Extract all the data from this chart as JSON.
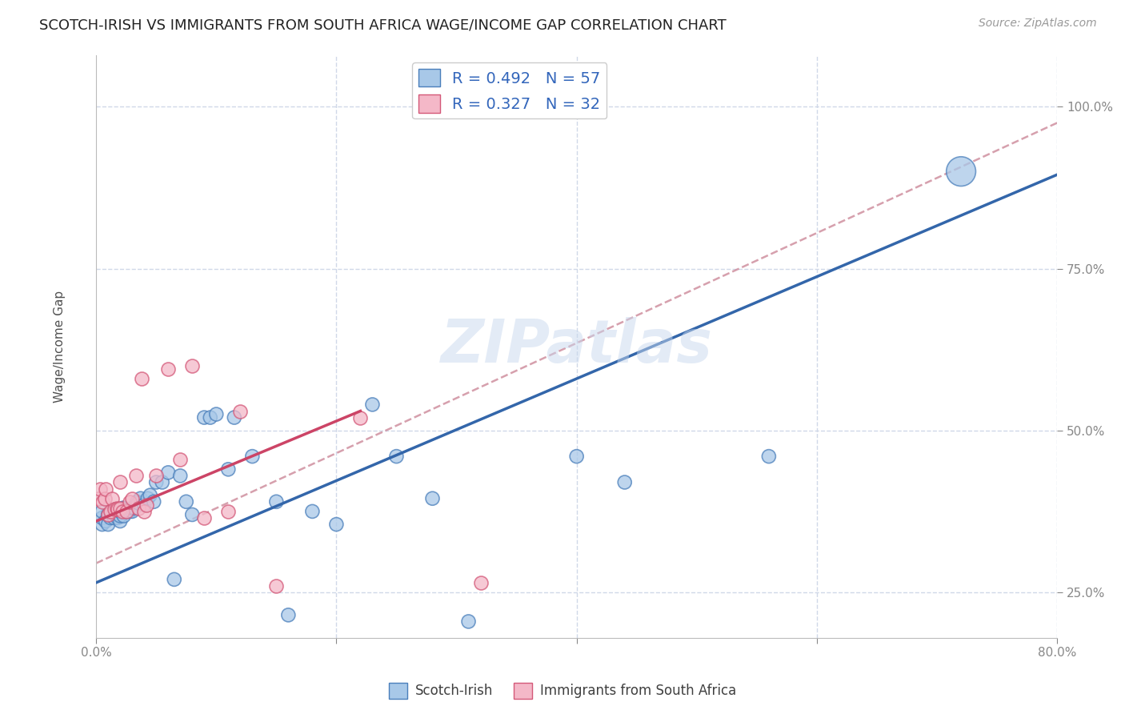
{
  "title": "SCOTCH-IRISH VS IMMIGRANTS FROM SOUTH AFRICA WAGE/INCOME GAP CORRELATION CHART",
  "source": "Source: ZipAtlas.com",
  "ylabel": "Wage/Income Gap",
  "xmin": 0.0,
  "xmax": 0.8,
  "ymin": 0.18,
  "ymax": 1.08,
  "xticks": [
    0.0,
    0.2,
    0.4,
    0.6,
    0.8
  ],
  "xtick_labels": [
    "0.0%",
    "",
    "",
    "",
    "80.0%"
  ],
  "ytick_positions": [
    0.25,
    0.5,
    0.75,
    1.0
  ],
  "ytick_labels": [
    "25.0%",
    "50.0%",
    "75.0%",
    "100.0%"
  ],
  "blue_R": 0.492,
  "blue_N": 57,
  "pink_R": 0.327,
  "pink_N": 32,
  "blue_color": "#a8c8e8",
  "pink_color": "#f4b8c8",
  "blue_edge_color": "#4a7fbb",
  "pink_edge_color": "#d45878",
  "blue_line_color": "#3366aa",
  "pink_line_color": "#cc4466",
  "dashed_line_color": "#cc8899",
  "legend_label_blue": "Scotch-Irish",
  "legend_label_pink": "Immigrants from South Africa",
  "blue_scatter_x": [
    0.005,
    0.005,
    0.005,
    0.008,
    0.01,
    0.01,
    0.012,
    0.013,
    0.015,
    0.015,
    0.017,
    0.018,
    0.018,
    0.02,
    0.02,
    0.02,
    0.022,
    0.023,
    0.023,
    0.025,
    0.027,
    0.028,
    0.03,
    0.03,
    0.032,
    0.034,
    0.035,
    0.037,
    0.04,
    0.043,
    0.045,
    0.048,
    0.05,
    0.055,
    0.06,
    0.065,
    0.07,
    0.075,
    0.08,
    0.09,
    0.095,
    0.1,
    0.11,
    0.115,
    0.13,
    0.15,
    0.16,
    0.18,
    0.2,
    0.23,
    0.25,
    0.28,
    0.31,
    0.4,
    0.44,
    0.56,
    0.72
  ],
  "blue_scatter_y": [
    0.355,
    0.365,
    0.375,
    0.36,
    0.355,
    0.37,
    0.365,
    0.375,
    0.365,
    0.375,
    0.37,
    0.365,
    0.375,
    0.36,
    0.368,
    0.375,
    0.38,
    0.368,
    0.38,
    0.375,
    0.375,
    0.375,
    0.375,
    0.38,
    0.38,
    0.39,
    0.388,
    0.395,
    0.385,
    0.395,
    0.4,
    0.39,
    0.42,
    0.42,
    0.435,
    0.27,
    0.43,
    0.39,
    0.37,
    0.52,
    0.52,
    0.525,
    0.44,
    0.52,
    0.46,
    0.39,
    0.215,
    0.375,
    0.355,
    0.54,
    0.46,
    0.395,
    0.205,
    0.46,
    0.42,
    0.46,
    0.9
  ],
  "blue_scatter_sizes": [
    150,
    150,
    150,
    150,
    150,
    150,
    150,
    150,
    150,
    150,
    150,
    150,
    150,
    150,
    150,
    150,
    150,
    150,
    150,
    150,
    150,
    150,
    150,
    150,
    150,
    150,
    150,
    150,
    150,
    150,
    150,
    150,
    150,
    150,
    150,
    150,
    150,
    150,
    150,
    150,
    150,
    150,
    150,
    150,
    150,
    150,
    150,
    150,
    150,
    150,
    150,
    150,
    150,
    150,
    150,
    150,
    700
  ],
  "pink_scatter_x": [
    0.002,
    0.003,
    0.005,
    0.007,
    0.008,
    0.01,
    0.012,
    0.013,
    0.015,
    0.017,
    0.018,
    0.02,
    0.02,
    0.022,
    0.025,
    0.028,
    0.03,
    0.033,
    0.035,
    0.038,
    0.04,
    0.042,
    0.05,
    0.06,
    0.07,
    0.08,
    0.09,
    0.11,
    0.12,
    0.15,
    0.22,
    0.32
  ],
  "pink_scatter_y": [
    0.395,
    0.41,
    0.39,
    0.395,
    0.41,
    0.37,
    0.375,
    0.395,
    0.378,
    0.38,
    0.378,
    0.38,
    0.42,
    0.375,
    0.375,
    0.39,
    0.395,
    0.43,
    0.38,
    0.58,
    0.375,
    0.385,
    0.43,
    0.595,
    0.455,
    0.6,
    0.365,
    0.375,
    0.53,
    0.26,
    0.52,
    0.265
  ],
  "blue_line_x": [
    0.0,
    0.8
  ],
  "blue_line_y": [
    0.265,
    0.895
  ],
  "pink_line_x": [
    0.0,
    0.22
  ],
  "pink_line_y": [
    0.36,
    0.53
  ],
  "dashed_line_x": [
    0.0,
    0.8
  ],
  "dashed_line_y": [
    0.295,
    0.975
  ],
  "watermark": "ZIPatlas",
  "background_color": "#ffffff",
  "grid_color": "#d0d8e8",
  "title_fontsize": 13,
  "axis_label_fontsize": 11,
  "tick_fontsize": 11,
  "legend_fontsize": 14
}
